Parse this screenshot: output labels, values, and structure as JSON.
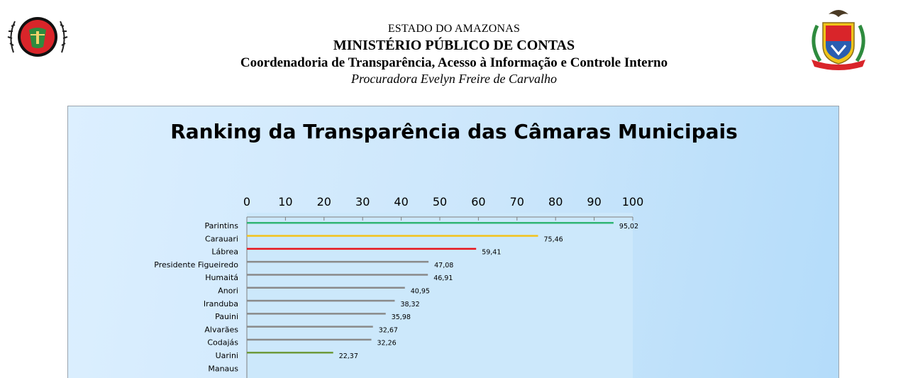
{
  "header": {
    "line1": "ESTADO DO AMAZONAS",
    "line2": "MINISTÉRIO PÚBLICO DE CONTAS",
    "line3": "Coordenadoria de Transparência, Acesso à Informação e Controle Interno",
    "line4": "Procuradora Evelyn Freire de Carvalho",
    "left_logo": "mpc-seal-icon",
    "right_logo": "amazonas-coat-of-arms-icon"
  },
  "chart_data": {
    "type": "bar",
    "orientation": "horizontal",
    "title": "Ranking da Transparência das Câmaras Municipais",
    "xlabel": "",
    "ylabel": "",
    "xlim": [
      0,
      100
    ],
    "xticks": [
      "0",
      "10",
      "20",
      "30",
      "40",
      "50",
      "60",
      "70",
      "80",
      "90",
      "100"
    ],
    "axis_position": "top",
    "categories": [
      "Parintins",
      "Carauari",
      "Lábrea",
      "Presidente Figueiredo",
      "Humaitá",
      "Anori",
      "Iranduba",
      "Pauini",
      "Alvarães",
      "Codajás",
      "Uarini",
      "Manaus"
    ],
    "values": [
      95.02,
      75.46,
      59.41,
      47.08,
      46.91,
      40.95,
      38.32,
      35.98,
      32.67,
      32.26,
      22.37,
      null
    ],
    "value_labels": [
      "95,02",
      "75,46",
      "59,41",
      "47,08",
      "46,91",
      "40,95",
      "38,32",
      "35,98",
      "32,67",
      "32,26",
      "22,37",
      ""
    ],
    "colors": [
      "#2fb574",
      "#f3c21a",
      "#e8141b",
      "#8a8a8a",
      "#8a8a8a",
      "#8a8a8a",
      "#8a8a8a",
      "#8a8a8a",
      "#8a8a8a",
      "#8a8a8a",
      "#6e9a3c",
      "#8a8a8a"
    ],
    "plot_background": "#cce8fb",
    "grid": false,
    "legend": "none"
  }
}
